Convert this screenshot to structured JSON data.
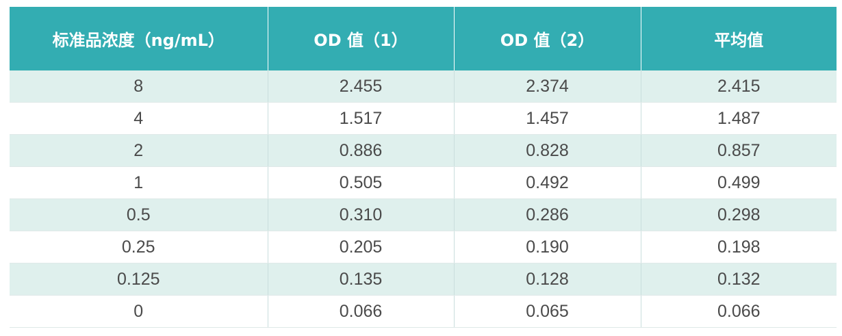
{
  "table": {
    "headers": [
      "标准品浓度（ng/mL）",
      "OD 值（1）",
      "OD 值（2）",
      "平均值"
    ],
    "rows": [
      [
        "8",
        "2.455",
        "2.374",
        "2.415"
      ],
      [
        "4",
        "1.517",
        "1.457",
        "1.487"
      ],
      [
        "2",
        "0.886",
        "0.828",
        "0.857"
      ],
      [
        "1",
        "0.505",
        "0.492",
        "0.499"
      ],
      [
        "0.5",
        "0.310",
        "0.286",
        "0.298"
      ],
      [
        "0.25",
        "0.205",
        "0.190",
        "0.198"
      ],
      [
        "0.125",
        "0.135",
        "0.128",
        "0.132"
      ],
      [
        "0",
        "0.066",
        "0.065",
        "0.066"
      ]
    ]
  },
  "colors": {
    "header_bg": "#33adb2",
    "header_text": "#ffffff",
    "row_stripe": "#dff0ed",
    "cell_text": "#4a4a4a"
  }
}
